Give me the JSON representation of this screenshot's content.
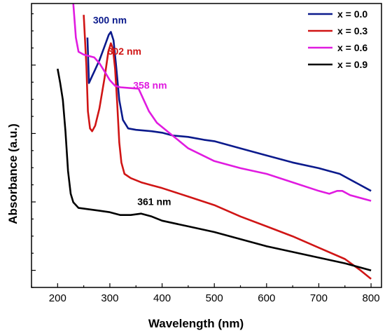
{
  "chart_data": {
    "type": "line",
    "xlabel": "Wavelength (nm)",
    "ylabel": "Absorbance (a.u.)",
    "xlim": [
      150,
      820
    ],
    "ylim": [
      0,
      100
    ],
    "x_ticks": [
      200,
      300,
      400,
      500,
      600,
      700,
      800
    ],
    "y_ticks_labeled": false,
    "legend_position": "top-right",
    "series": [
      {
        "name": "x = 0.0",
        "color": "#0b1a8c",
        "points": [
          [
            257,
            88
          ],
          [
            260,
            72
          ],
          [
            265,
            74
          ],
          [
            270,
            76
          ],
          [
            280,
            80
          ],
          [
            290,
            85
          ],
          [
            298,
            89
          ],
          [
            302,
            90
          ],
          [
            307,
            87
          ],
          [
            312,
            78
          ],
          [
            318,
            66
          ],
          [
            325,
            59
          ],
          [
            335,
            56
          ],
          [
            350,
            55.5
          ],
          [
            380,
            55
          ],
          [
            400,
            54.5
          ],
          [
            420,
            53.5
          ],
          [
            450,
            53
          ],
          [
            480,
            52
          ],
          [
            500,
            51.5
          ],
          [
            550,
            49
          ],
          [
            600,
            46.5
          ],
          [
            650,
            44
          ],
          [
            700,
            42
          ],
          [
            720,
            41
          ],
          [
            740,
            40
          ],
          [
            760,
            38
          ],
          [
            800,
            34
          ]
        ]
      },
      {
        "name": "x = 0.3",
        "color": "#d01515",
        "points": [
          [
            250,
            96
          ],
          [
            255,
            78
          ],
          [
            258,
            62
          ],
          [
            262,
            56
          ],
          [
            266,
            55
          ],
          [
            272,
            57
          ],
          [
            280,
            63
          ],
          [
            290,
            74
          ],
          [
            297,
            83
          ],
          [
            302,
            86
          ],
          [
            306,
            84
          ],
          [
            310,
            77
          ],
          [
            314,
            65
          ],
          [
            318,
            51
          ],
          [
            322,
            44
          ],
          [
            328,
            40
          ],
          [
            340,
            38.5
          ],
          [
            360,
            37
          ],
          [
            380,
            36
          ],
          [
            400,
            35
          ],
          [
            450,
            32
          ],
          [
            500,
            29
          ],
          [
            550,
            25
          ],
          [
            600,
            21.5
          ],
          [
            650,
            18
          ],
          [
            700,
            14
          ],
          [
            750,
            10
          ],
          [
            780,
            6
          ],
          [
            800,
            3
          ]
        ]
      },
      {
        "name": "x = 0.6",
        "color": "#e01be0",
        "points": [
          [
            230,
            100
          ],
          [
            235,
            88
          ],
          [
            240,
            83
          ],
          [
            250,
            82
          ],
          [
            260,
            81.5
          ],
          [
            270,
            81
          ],
          [
            280,
            79
          ],
          [
            290,
            76
          ],
          [
            300,
            73
          ],
          [
            310,
            71
          ],
          [
            320,
            70.5
          ],
          [
            340,
            70.2
          ],
          [
            355,
            70
          ],
          [
            365,
            66
          ],
          [
            375,
            62
          ],
          [
            390,
            58
          ],
          [
            410,
            55
          ],
          [
            450,
            49
          ],
          [
            500,
            44.5
          ],
          [
            550,
            42
          ],
          [
            600,
            40
          ],
          [
            650,
            37
          ],
          [
            700,
            34
          ],
          [
            720,
            33
          ],
          [
            735,
            34
          ],
          [
            745,
            34
          ],
          [
            760,
            32.5
          ],
          [
            800,
            30.5
          ]
        ]
      },
      {
        "name": "x = 0.9",
        "color": "#000000",
        "points": [
          [
            200,
            77
          ],
          [
            205,
            72
          ],
          [
            210,
            66
          ],
          [
            215,
            55
          ],
          [
            220,
            41
          ],
          [
            225,
            33
          ],
          [
            230,
            30
          ],
          [
            240,
            28
          ],
          [
            260,
            27.5
          ],
          [
            280,
            27
          ],
          [
            300,
            26.5
          ],
          [
            320,
            25.5
          ],
          [
            340,
            25.5
          ],
          [
            360,
            26
          ],
          [
            380,
            25
          ],
          [
            400,
            23.5
          ],
          [
            450,
            21.5
          ],
          [
            500,
            19.5
          ],
          [
            550,
            17
          ],
          [
            600,
            14.5
          ],
          [
            650,
            12.5
          ],
          [
            700,
            10.5
          ],
          [
            750,
            8.5
          ],
          [
            800,
            6
          ]
        ]
      }
    ],
    "annotations": [
      {
        "text": "300 nm",
        "x": 300,
        "y": 93,
        "color": "#0b1a8c"
      },
      {
        "text": "302 nm",
        "x": 328,
        "y": 82,
        "color": "#d01515"
      },
      {
        "text": "358 nm",
        "x": 377,
        "y": 70,
        "color": "#e01be0"
      },
      {
        "text": "361 nm",
        "x": 385,
        "y": 29,
        "color": "#000000"
      }
    ]
  }
}
